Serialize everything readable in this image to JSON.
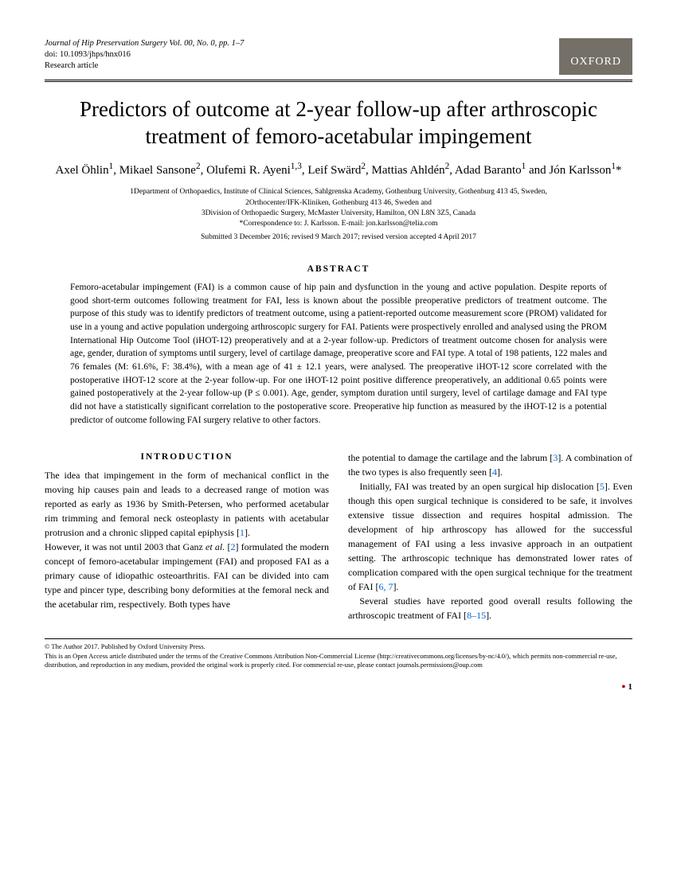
{
  "header": {
    "journal_line": "Journal of Hip Preservation Surgery Vol. 00, No. 0, pp. 1–7",
    "doi_line": "doi: 10.1093/jhps/hnx016",
    "type_line": "Research article",
    "publisher_badge": "OXFORD"
  },
  "article": {
    "title": "Predictors of outcome at 2-year follow-up after arthroscopic treatment of femoro-acetabular impingement",
    "authors_html": "Axel Öhlin<sup>1</sup>, Mikael Sansone<sup>2</sup>, Olufemi R. Ayeni<sup>1,3</sup>, Leif Swärd<sup>2</sup>, Mattias Ahldén<sup>2</sup>, Adad Baranto<sup>1</sup> and Jón Karlsson<sup>1</sup>*",
    "affiliations": [
      "1Department of Orthopaedics, Institute of Clinical Sciences, Sahlgrenska Academy, Gothenburg University, Gothenburg 413 45, Sweden,",
      "2Orthocenter/IFK-Kliniken, Gothenburg 413 46, Sweden and",
      "3Division of Orthopaedic Surgery, McMaster University, Hamilton, ON L8N 3Z5, Canada",
      "*Correspondence to: J. Karlsson. E-mail: jon.karlsson@telia.com"
    ],
    "submitted": "Submitted 3 December 2016; revised 9 March 2017; revised version accepted 4 April 2017"
  },
  "abstract": {
    "heading": "ABSTRACT",
    "body": "Femoro-acetabular impingement (FAI) is a common cause of hip pain and dysfunction in the young and active population. Despite reports of good short-term outcomes following treatment for FAI, less is known about the possible preoperative predictors of treatment outcome. The purpose of this study was to identify predictors of treatment outcome, using a patient-reported outcome measurement score (PROM) validated for use in a young and active population undergoing arthroscopic surgery for FAI. Patients were prospectively enrolled and analysed using the PROM International Hip Outcome Tool (iHOT-12) preoperatively and at a 2-year follow-up. Predictors of treatment outcome chosen for analysis were age, gender, duration of symptoms until surgery, level of cartilage damage, preoperative score and FAI type. A total of 198 patients, 122 males and 76 females (M: 61.6%, F: 38.4%), with a mean age of 41 ± 12.1 years, were analysed. The preoperative iHOT-12 score correlated with the postoperative iHOT-12 score at the 2-year follow-up. For one iHOT-12 point positive difference preoperatively, an additional 0.65 points were gained postoperatively at the 2-year follow-up (P ≤ 0.001). Age, gender, symptom duration until surgery, level of cartilage damage and FAI type did not have a statistically significant correlation to the postoperative score. Preoperative hip function as measured by the iHOT-12 is a potential predictor of outcome following FAI surgery relative to other factors."
  },
  "body": {
    "intro_heading": "INTRODUCTION",
    "col1_p1": "The idea that impingement in the form of mechanical conflict in the moving hip causes pain and leads to a decreased range of motion was reported as early as 1936 by Smith-Petersen, who performed acetabular rim trimming and femoral neck osteoplasty in patients with acetabular protrusion and a chronic slipped capital epiphysis [",
    "ref1": "1",
    "col1_p1b": "].",
    "col1_p2a": "However, it was not until 2003 that Ganz ",
    "col1_etal": "et al.",
    "col1_p2b": " [",
    "ref2": "2",
    "col1_p2c": "] formulated the modern concept of femoro-acetabular impingement (FAI) and proposed FAI as a primary cause of idiopathic osteoarthritis. FAI can be divided into cam type and pincer type, describing bony deformities at the femoral neck and the acetabular rim, respectively. Both types have",
    "col2_p1a": "the potential to damage the cartilage and the labrum [",
    "ref3": "3",
    "col2_p1b": "]. A combination of the two types is also frequently seen [",
    "ref4": "4",
    "col2_p1c": "].",
    "col2_p2a": "Initially, FAI was treated by an open surgical hip dislocation [",
    "ref5": "5",
    "col2_p2b": "]. Even though this open surgical technique is considered to be safe, it involves extensive tissue dissection and requires hospital admission. The development of hip arthroscopy has allowed for the successful management of FAI using a less invasive approach in an outpatient setting. The arthroscopic technique has demonstrated lower rates of complication compared with the open surgical technique for the treatment of FAI [",
    "ref67": "6, 7",
    "col2_p2c": "].",
    "col2_p3a": "Several studies have reported good overall results following the arthroscopic treatment of FAI [",
    "ref815": "8–15",
    "col2_p3b": "]."
  },
  "footer": {
    "copyright": "© The Author 2017. Published by Oxford University Press.",
    "license": "This is an Open Access article distributed under the terms of the Creative Commons Attribution Non-Commercial License (http://creativecommons.org/licenses/by-nc/4.0/), which permits non-commercial re-use, distribution, and reproduction in any medium, provided the original work is properly cited. For commercial re-use, please contact journals.permissions@oup.com",
    "page": "1"
  }
}
